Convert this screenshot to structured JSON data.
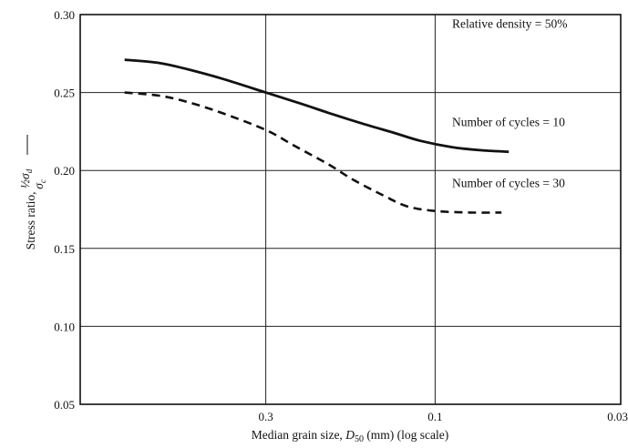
{
  "chart_data": {
    "type": "line",
    "xlabel_prefix": "Median grain size, ",
    "xlabel_symbol": "D",
    "xlabel_subscript": "50",
    "xlabel_suffix": " (mm) (log scale)",
    "ylabel_prefix": "Stress ratio, ",
    "ylabel_fraction_num": "½σ",
    "ylabel_fraction_num_sub": "d",
    "ylabel_fraction_den": "σ",
    "ylabel_fraction_den_sub": "c",
    "x_scale": "log",
    "x_direction": "decreasing",
    "xlim": [
      1,
      0.03
    ],
    "ylim": [
      0.05,
      0.3
    ],
    "x_ticks": [
      {
        "value": 0.3,
        "label": "0.3"
      },
      {
        "value": 0.1,
        "label": "0.1"
      },
      {
        "value": 0.03,
        "label": "0.03"
      }
    ],
    "y_ticks": [
      {
        "value": 0.05,
        "label": "0.05"
      },
      {
        "value": 0.1,
        "label": "0.10"
      },
      {
        "value": 0.15,
        "label": "0.15"
      },
      {
        "value": 0.2,
        "label": "0.20"
      },
      {
        "value": 0.25,
        "label": "0.25"
      },
      {
        "value": 0.3,
        "label": "0.30"
      }
    ],
    "grid": true,
    "annotation": "Relative density = 50%",
    "series": [
      {
        "name": "Number of cycles = 10",
        "style": "solid",
        "color": "#111111",
        "x": [
          0.75,
          0.6,
          0.5,
          0.4,
          0.3,
          0.24,
          0.2,
          0.16,
          0.13,
          0.11,
          0.09,
          0.075,
          0.062
        ],
        "y": [
          0.271,
          0.269,
          0.265,
          0.259,
          0.25,
          0.243,
          0.237,
          0.23,
          0.224,
          0.219,
          0.215,
          0.213,
          0.212
        ]
      },
      {
        "name": "Number of cycles = 30",
        "style": "dashed",
        "color": "#111111",
        "x": [
          0.75,
          0.6,
          0.5,
          0.4,
          0.3,
          0.25,
          0.2,
          0.17,
          0.14,
          0.12,
          0.1,
          0.08,
          0.065
        ],
        "y": [
          0.25,
          0.248,
          0.244,
          0.237,
          0.226,
          0.216,
          0.204,
          0.194,
          0.184,
          0.177,
          0.174,
          0.173,
          0.173
        ]
      }
    ]
  }
}
